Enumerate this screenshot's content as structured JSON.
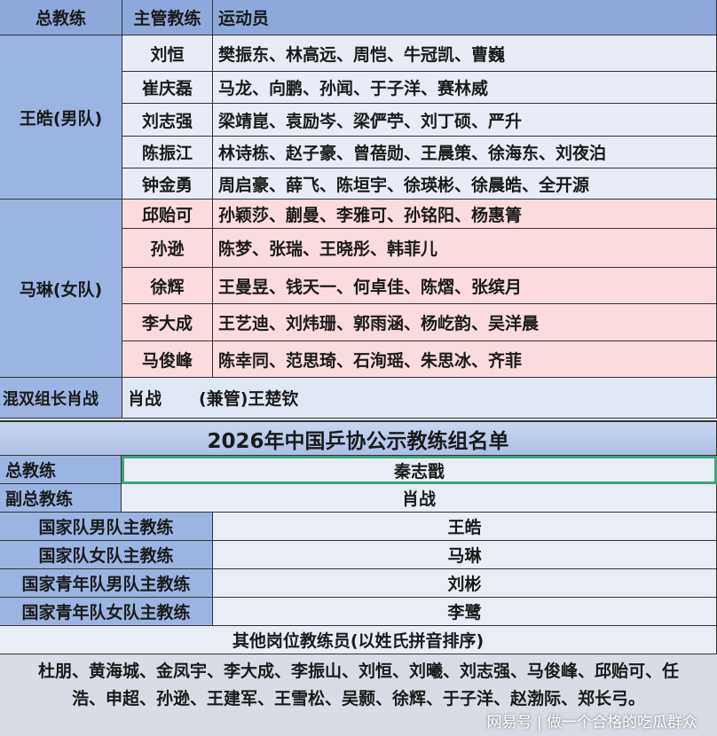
{
  "top_table": {
    "headers": [
      "总教练",
      "主管教练",
      "运动员"
    ],
    "men": {
      "head": "王皓(男队)",
      "rows": [
        {
          "coach": "刘恒",
          "players": "樊振东、林高远、周恺、牛冠凯、曹巍"
        },
        {
          "coach": "崔庆磊",
          "players": "马龙、向鹏、孙闻、于子洋、赛林威"
        },
        {
          "coach": "刘志强",
          "players": "梁靖崑、袁励岑、梁俨苧、刘丁硕、严升"
        },
        {
          "coach": "陈振江",
          "players": "林诗栋、赵子豪、曾蓓勋、王晨策、徐海东、刘夜泊"
        },
        {
          "coach": "钟金勇",
          "players": "周启豪、薛飞、陈垣宇、徐瑛彬、徐晨皓、全开源"
        }
      ]
    },
    "women": {
      "head": "马琳(女队)",
      "rows": [
        {
          "coach": "邱贻可",
          "players": "孙颖莎、蒯曼、李雅可、孙铭阳、杨惠箐"
        },
        {
          "coach": "孙逊",
          "players": "陈梦、张瑞、王晓彤、韩菲儿"
        },
        {
          "coach": "徐辉",
          "players": "王曼昱、钱天一、何卓佳、陈熠、张缤月"
        },
        {
          "coach": "李大成",
          "players": "王艺迪、刘炜珊、郭雨涵、杨屹韵、吴洋晨"
        },
        {
          "coach": "马俊峰",
          "players": "陈幸同、范思琦、石洵瑶、朱思冰、齐菲"
        }
      ]
    },
    "mixed": {
      "head": "混双组长肖战",
      "coach": "肖战",
      "note": "(兼管)王楚钦"
    }
  },
  "bottom_table": {
    "title": "2026年中国乒协公示教练组名单",
    "rows": [
      {
        "label": "总教练",
        "value": "秦志戬"
      },
      {
        "label": "副总教练",
        "value": "肖战"
      },
      {
        "label": "国家队男队主教练",
        "value": "王皓"
      },
      {
        "label": "国家队女队主教练",
        "value": "马琳"
      },
      {
        "label": "国家青年队男队主教练",
        "value": "刘彬"
      },
      {
        "label": "国家青年队女队主教练",
        "value": "李鹭"
      }
    ],
    "others_header": "其他岗位教练员(以姓氏拼音排序)",
    "others": "杜朋、黄海城、金凤宇、李大成、李振山、刘恒、刘曦、刘志强、马俊峰、邱贻可、任浩、申超、孙逊、王建军、王雪松、吴颢、徐辉、于子洋、赵渤际、郑长弓。"
  },
  "watermark": "网易号 | 做一个合格的吃瓜群众"
}
